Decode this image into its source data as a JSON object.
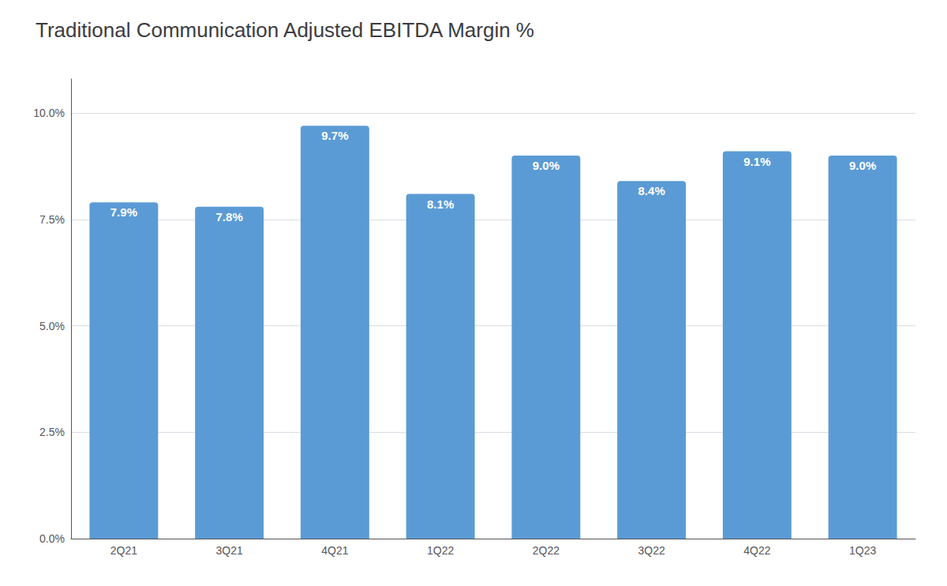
{
  "chart_data": {
    "type": "bar",
    "title": "Traditional Communication Adjusted EBITDA Margin %",
    "categories": [
      "2Q21",
      "3Q21",
      "4Q21",
      "1Q22",
      "2Q22",
      "3Q22",
      "4Q22",
      "1Q23"
    ],
    "values": [
      7.9,
      7.8,
      9.7,
      8.1,
      9.0,
      8.4,
      9.1,
      9.0
    ],
    "value_labels": [
      "7.9%",
      "7.8%",
      "9.7%",
      "8.1%",
      "9.0%",
      "8.4%",
      "9.1%",
      "9.0%"
    ],
    "data_labels": true,
    "color": "#5B9BD5",
    "ylim": [
      0,
      10.8
    ],
    "yticks": [
      {
        "value": 0.0,
        "label": "0.0%"
      },
      {
        "value": 2.5,
        "label": "2.5%"
      },
      {
        "value": 5.0,
        "label": "5.0%"
      },
      {
        "value": 7.5,
        "label": "7.5%"
      },
      {
        "value": 10.0,
        "label": "10.0%"
      }
    ],
    "grid": true
  }
}
